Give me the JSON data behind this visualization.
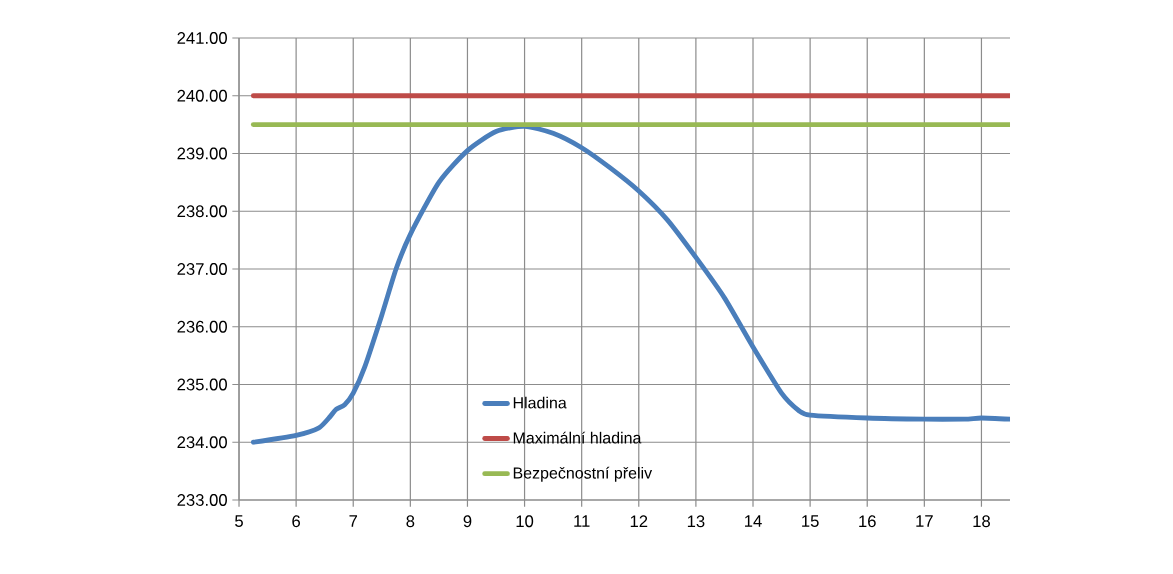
{
  "chart_data": {
    "type": "line",
    "xlim": [
      5,
      18.5
    ],
    "ylim": [
      233,
      241
    ],
    "xticks": [
      5,
      6,
      7,
      8,
      9,
      10,
      11,
      12,
      13,
      14,
      15,
      16,
      17,
      18
    ],
    "yticks": [
      {
        "value": 233,
        "label": "233.00"
      },
      {
        "value": 234,
        "label": "234.00"
      },
      {
        "value": 235,
        "label": "235.00"
      },
      {
        "value": 236,
        "label": "236.00"
      },
      {
        "value": 237,
        "label": "237.00"
      },
      {
        "value": 238,
        "label": "238.00"
      },
      {
        "value": 239,
        "label": "239.00"
      },
      {
        "value": 240,
        "label": "240.00"
      },
      {
        "value": 241,
        "label": "241.00"
      }
    ],
    "grid": true,
    "legend": "bottom",
    "line_style": "solid",
    "marker": "none",
    "series": [
      {
        "name": "Hladina",
        "color": "#4a7ebb",
        "x": [
          5.25,
          6,
          6.4,
          6.6,
          6.7,
          6.85,
          7,
          7.2,
          7.5,
          7.75,
          8,
          8.5,
          9,
          9.5,
          10,
          10.5,
          11,
          11.5,
          12,
          12.5,
          13,
          13.5,
          14,
          14.5,
          14.8,
          15,
          16,
          17,
          17.7,
          18,
          18.5
        ],
        "values": [
          234.0,
          234.12,
          234.25,
          234.45,
          234.57,
          234.65,
          234.85,
          235.3,
          236.2,
          237.0,
          237.6,
          238.5,
          239.05,
          239.38,
          239.47,
          239.35,
          239.1,
          238.75,
          238.35,
          237.85,
          237.2,
          236.5,
          235.65,
          234.85,
          234.55,
          234.47,
          234.42,
          234.4,
          234.4,
          234.42,
          234.4
        ]
      },
      {
        "name": "Maximální hladina",
        "color": "#be4b48",
        "x": [
          5.25,
          18.5
        ],
        "values": [
          240,
          240
        ]
      },
      {
        "name": "Bezpečnostní přeliv",
        "color": "#98b954",
        "x": [
          5.25,
          18.5
        ],
        "values": [
          239.5,
          239.5
        ]
      }
    ]
  }
}
